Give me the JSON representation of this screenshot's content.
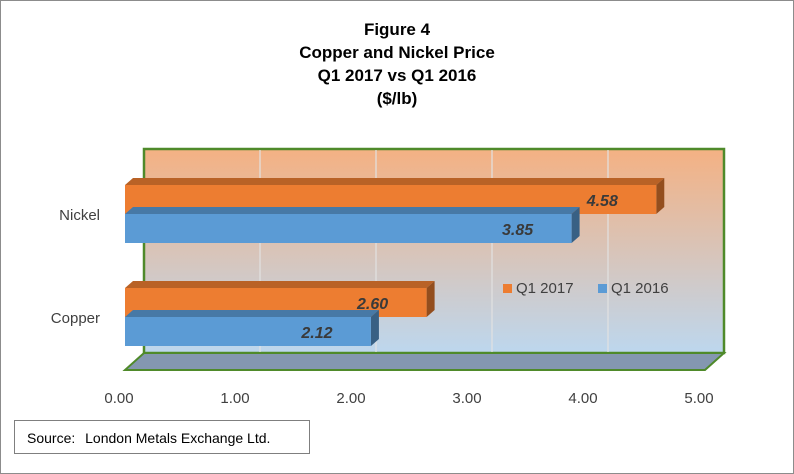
{
  "chart_data": {
    "type": "bar",
    "orientation": "horizontal",
    "title_lines": [
      "Figure 4",
      "Copper and Nickel Price",
      "Q1 2017 vs Q1 2016",
      "($/lb)"
    ],
    "categories": [
      "Nickel",
      "Copper"
    ],
    "series": [
      {
        "name": "Q1 2017",
        "values": [
          4.58,
          2.6
        ],
        "labels": [
          "4.58",
          "2.60"
        ],
        "color": "#ed7d31"
      },
      {
        "name": "Q1 2016",
        "values": [
          3.85,
          2.12
        ],
        "labels": [
          "3.85",
          "2.12"
        ],
        "color": "#5b9bd5"
      }
    ],
    "xlim": [
      0,
      5
    ],
    "x_ticks": [
      "0.00",
      "1.00",
      "2.00",
      "3.00",
      "4.00",
      "5.00"
    ],
    "grid": true,
    "legend_position": "right",
    "colors": {
      "plot_border": "#4f8a2a",
      "floor": "#8497b0",
      "bg_top": "#f4b183",
      "bg_bottom": "#bdd7ee"
    }
  },
  "source": {
    "label": "Source:",
    "text": "London Metals Exchange Ltd."
  }
}
